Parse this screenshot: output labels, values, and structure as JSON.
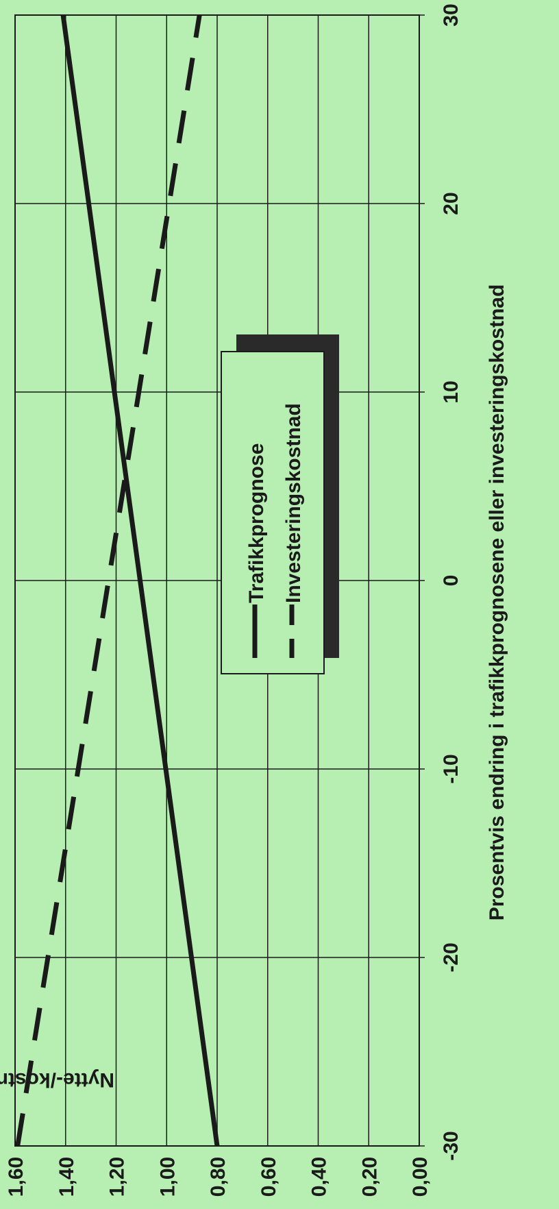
{
  "chart_data": {
    "type": "line",
    "orientation": "rotated-90-clockwise",
    "xlabel": "Prosentvis endring i trafikkprognosene eller investeringskostnad",
    "ylabel": "Nytte-/kostnadsbrøk",
    "x_ticks": [
      "-30",
      "-20",
      "-10",
      "0",
      "10",
      "20",
      "30"
    ],
    "y_ticks": [
      "0,00",
      "0,20",
      "0,40",
      "0,60",
      "0,80",
      "1,00",
      "1,20",
      "1,40",
      "1,60"
    ],
    "xlim": [
      -30,
      30
    ],
    "ylim": [
      0,
      1.6
    ],
    "grid": true,
    "legend_position": "center",
    "x": [
      -30,
      30
    ],
    "series": [
      {
        "name": "Trafikkprognose",
        "values": [
          0.8,
          1.41
        ],
        "style": "solid",
        "color": "#1a1a1a"
      },
      {
        "name": "Investeringskostnad",
        "values": [
          1.59,
          0.87
        ],
        "style": "dashed",
        "color": "#1a1a1a"
      }
    ]
  },
  "colors": {
    "background": "#b7eeb2",
    "ink": "#1a1a1a",
    "legend_box": "#b7eeb2",
    "legend_shadow": "#2a2a2a"
  }
}
